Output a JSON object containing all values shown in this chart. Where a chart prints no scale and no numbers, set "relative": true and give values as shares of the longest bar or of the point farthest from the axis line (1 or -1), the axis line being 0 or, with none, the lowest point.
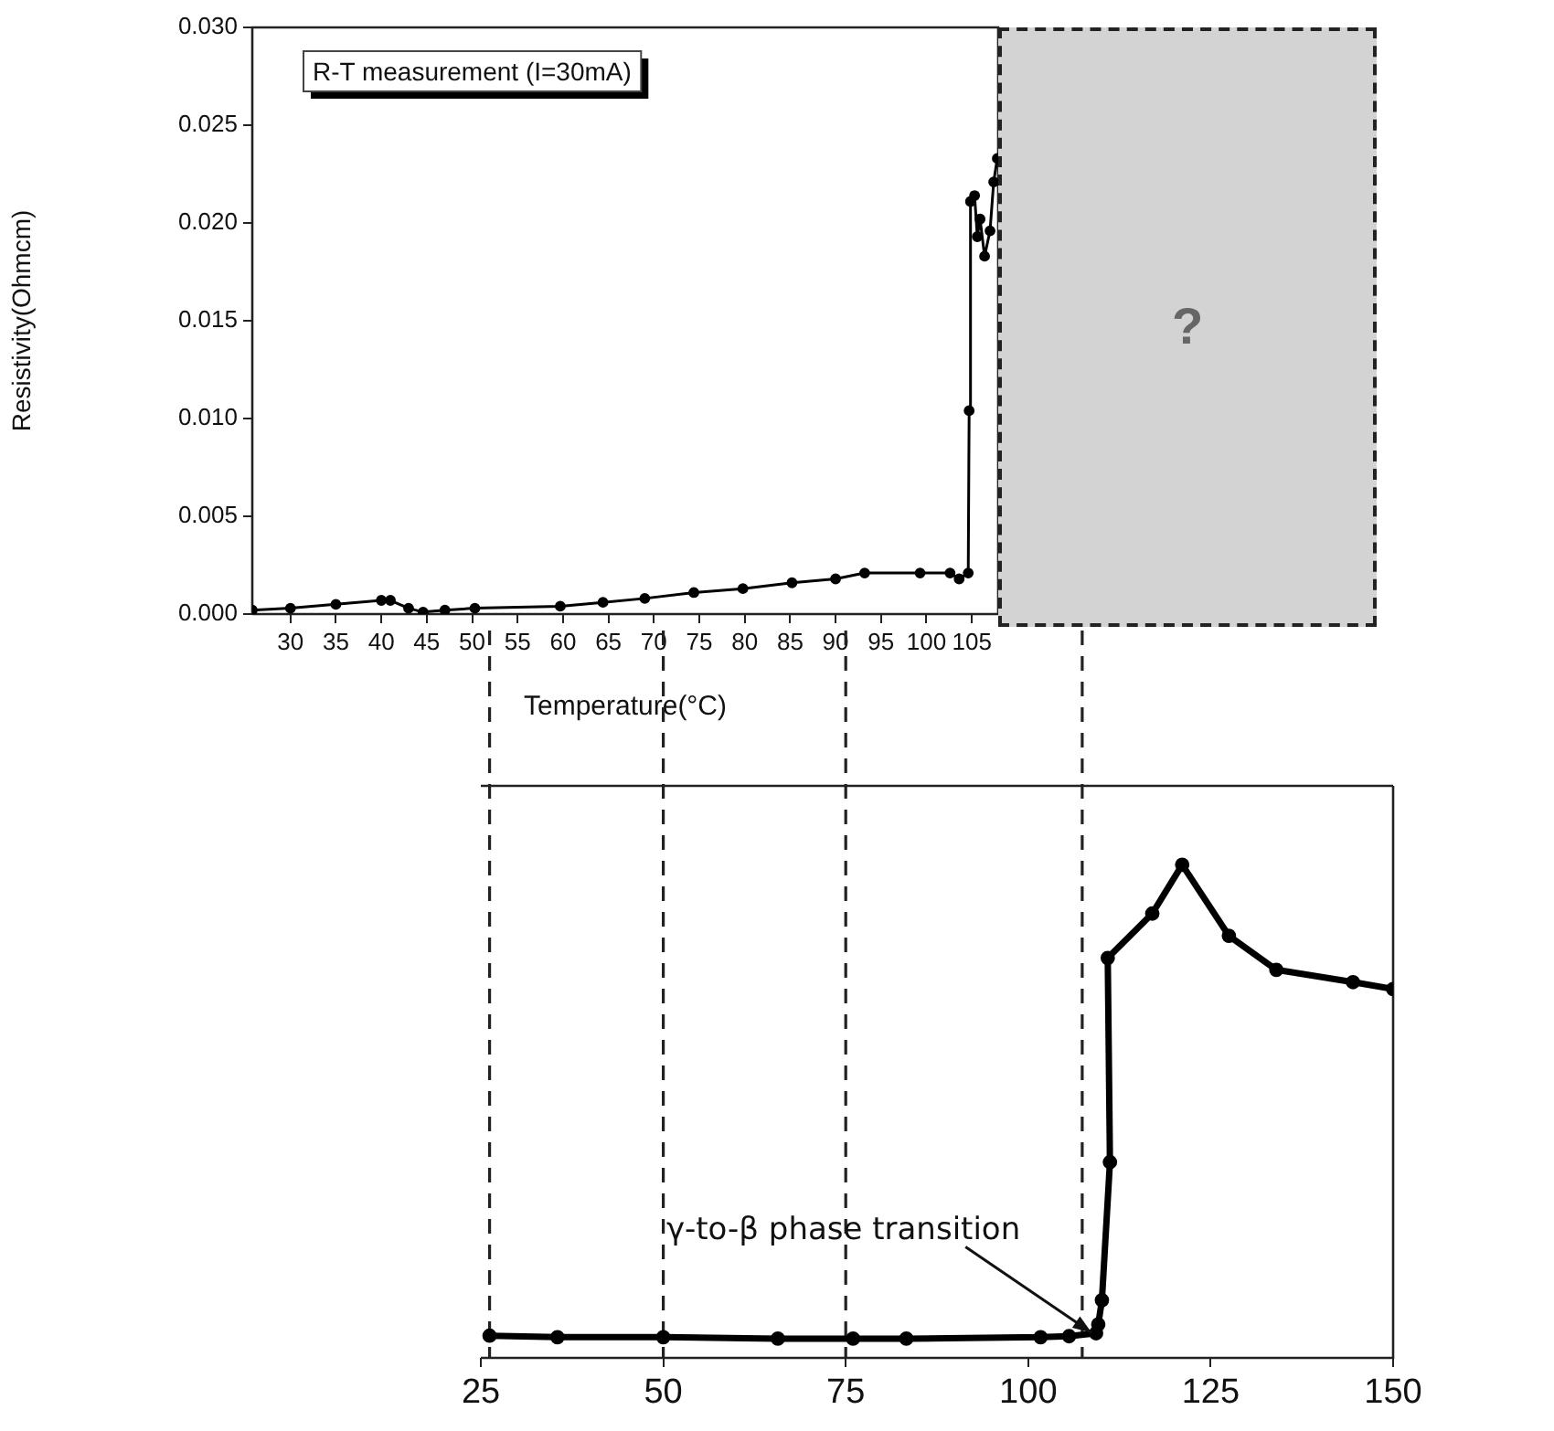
{
  "chart_data": [
    {
      "type": "line",
      "xlabel": "Temperature(°C)",
      "ylabel": "Resistivity(Ohmcm)",
      "annotations": [
        "R-T measurement (I=30mA)",
        "?"
      ],
      "marker": "circle",
      "line_style": "solid",
      "xlim": [
        25.8,
        107.9
      ],
      "xticks": [
        30,
        35,
        40,
        45,
        50,
        55,
        60,
        65,
        70,
        75,
        80,
        85,
        90,
        95,
        100,
        105
      ],
      "ylim": [
        0,
        0.03
      ],
      "yticks": [
        {
          "value": 0,
          "label": "0.000"
        },
        0.005,
        {
          "value": 0.01,
          "label": "0.010"
        },
        0.015,
        {
          "value": 0.02,
          "label": "0.020"
        },
        0.025,
        {
          "value": 0.03,
          "label": "0.030"
        }
      ],
      "x": [
        25.8,
        30,
        35,
        40,
        41,
        43,
        44.6,
        47,
        50.3,
        59.7,
        64.4,
        69,
        74.4,
        79.8,
        85.2,
        90,
        93.2,
        99.3,
        102.6,
        103.6,
        104.6,
        104.7,
        104.85,
        105.3,
        105.6,
        105.9,
        106.4,
        107,
        107.4,
        107.8
      ],
      "series": [
        {
          "color": "#000000",
          "values": [
            0.0002,
            0.0003,
            0.0005,
            0.0007,
            0.0007,
            0.0003,
            0.0001,
            0.0002,
            0.0003,
            0.0004,
            0.0006,
            0.0008,
            0.0011,
            0.0013,
            0.0016,
            0.0018,
            0.0021,
            0.0021,
            0.0021,
            0.0018,
            0.0021,
            0.0104,
            0.0211,
            0.0214,
            0.0193,
            0.0202,
            0.0183,
            0.0196,
            0.0221,
            0.0233
          ]
        }
      ]
    },
    {
      "type": "line",
      "relative": true,
      "tick_labels": "x",
      "marker": "circle",
      "line_style": "solid",
      "xlim": [
        25,
        150
      ],
      "xticks": [
        25,
        50,
        75,
        100,
        125,
        150
      ],
      "annotations": [
        {
          "text": "γ-to-β phase transition",
          "x": 110.2,
          "y": 0.04
        }
      ],
      "ref_lines": [
        {
          "axis": "x",
          "value": 26.2,
          "line_style": "dashed"
        },
        {
          "axis": "x",
          "value": 50,
          "line_style": "dashed"
        },
        {
          "axis": "x",
          "value": 75,
          "line_style": "dashed"
        },
        {
          "axis": "x",
          "value": 107.4,
          "line_style": "dashed"
        }
      ],
      "x": [
        26.2,
        35.5,
        50,
        65.7,
        76,
        83.3,
        101.7,
        105.6,
        109.3,
        109.6,
        110.1,
        111.2,
        110.9,
        117,
        121.1,
        127.5,
        134,
        144.5,
        150
      ],
      "series": [
        {
          "color": "#000000",
          "values": [
            0.045,
            0.042,
            0.042,
            0.039,
            0.039,
            0.039,
            0.042,
            0.044,
            0.05,
            0.068,
            0.117,
            0.397,
            0.811,
            0.901,
            1,
            0.856,
            0.787,
            0.762,
            0.748
          ]
        }
      ]
    }
  ]
}
